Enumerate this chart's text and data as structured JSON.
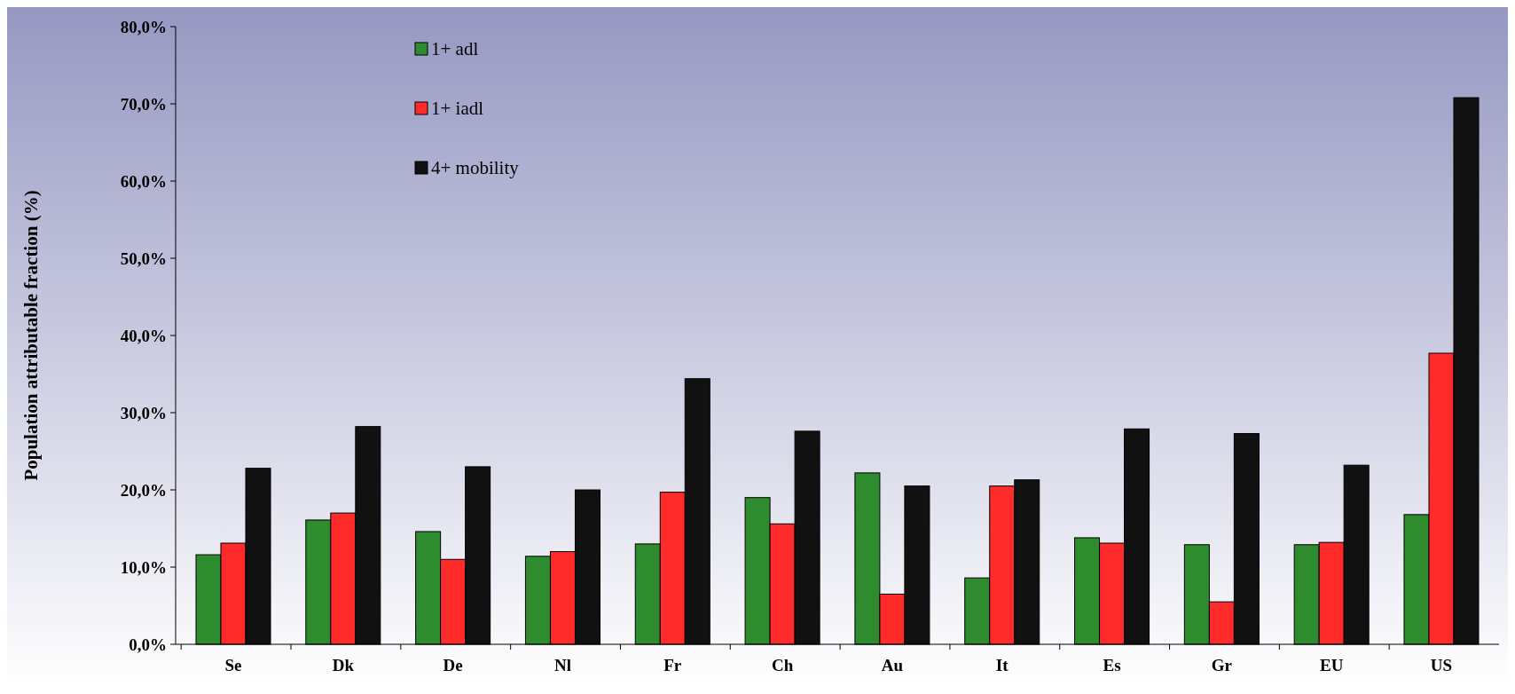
{
  "chart_data": {
    "type": "bar",
    "ylabel": "Population attributable fraction (%)",
    "categories": [
      "Se",
      "Dk",
      "De",
      "Nl",
      "Fr",
      "Ch",
      "Au",
      "It",
      "Es",
      "Gr",
      "EU",
      "US"
    ],
    "series": [
      {
        "name": "1+ adl",
        "color": "#2e8b2e",
        "values": [
          11.6,
          16.1,
          14.6,
          11.4,
          13.0,
          19.0,
          22.2,
          8.6,
          13.8,
          12.9,
          12.9,
          16.8
        ]
      },
      {
        "name": "1+ iadl",
        "color": "#ff2a2a",
        "values": [
          13.1,
          17.0,
          11.0,
          12.0,
          19.7,
          15.6,
          6.5,
          20.5,
          13.1,
          5.5,
          13.2,
          37.7
        ]
      },
      {
        "name": "4+ mobility",
        "color": "#111111",
        "values": [
          22.8,
          28.2,
          23.0,
          20.0,
          34.4,
          27.6,
          20.5,
          21.3,
          27.9,
          27.3,
          23.2,
          70.8
        ]
      }
    ],
    "ylim": [
      0,
      80
    ],
    "yticks": [
      {
        "value": 0,
        "label": "0,0%"
      },
      {
        "value": 10,
        "label": "10,0%"
      },
      {
        "value": 20,
        "label": "20,0%"
      },
      {
        "value": 30,
        "label": "30,0%"
      },
      {
        "value": 40,
        "label": "40,0%"
      },
      {
        "value": 50,
        "label": "50,0%"
      },
      {
        "value": 60,
        "label": "60,0%"
      },
      {
        "value": 70,
        "label": "70,0%"
      },
      {
        "value": 80,
        "label": "80,0%"
      }
    ],
    "legend": "top left",
    "grid": false
  }
}
